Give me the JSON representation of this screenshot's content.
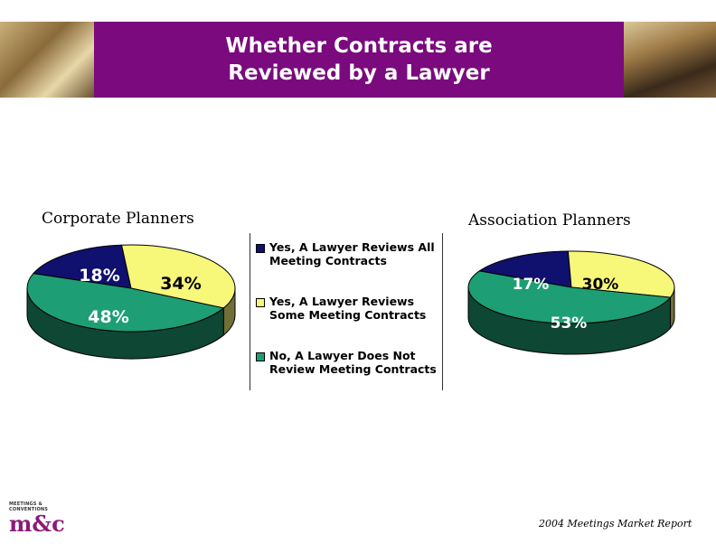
{
  "header": {
    "title": "Whether Contracts are\nReviewed by a Lawyer",
    "band_color": "#7a0a7e"
  },
  "legend": {
    "items": [
      {
        "label": "Yes, A Lawyer Reviews All\nMeeting Contracts",
        "color": "#10106e"
      },
      {
        "label": "Yes, A Lawyer Reviews\nSome Meeting Contracts",
        "color": "#f7f77a"
      },
      {
        "label": "No, A Lawyer Does Not\nReview Meeting Contracts",
        "color": "#1e9e74"
      }
    ]
  },
  "chart_data": [
    {
      "type": "pie",
      "title": "Corporate Planners",
      "categories": [
        "Yes, A Lawyer Reviews All Meeting Contracts",
        "Yes, A Lawyer Reviews Some Meeting Contracts",
        "No, A Lawyer Does Not Review Meeting Contracts"
      ],
      "values": [
        18,
        34,
        48
      ],
      "labels": [
        "18%",
        "34%",
        "48%"
      ],
      "colors": [
        "#10106e",
        "#f7f77a",
        "#1e9e74"
      ]
    },
    {
      "type": "pie",
      "title": "Association Planners",
      "categories": [
        "Yes, A Lawyer Reviews All Meeting Contracts",
        "Yes, A Lawyer Reviews Some Meeting Contracts",
        "No, A Lawyer Does Not Review Meeting Contracts"
      ],
      "values": [
        17,
        30,
        53
      ],
      "labels": [
        "17%",
        "30%",
        "53%"
      ],
      "colors": [
        "#10106e",
        "#f7f77a",
        "#1e9e74"
      ]
    }
  ],
  "footer": {
    "text": "2004 Meetings Market Report"
  },
  "logo": {
    "top_text": "MEETINGS & CONVENTIONS",
    "mark": "m&c"
  }
}
